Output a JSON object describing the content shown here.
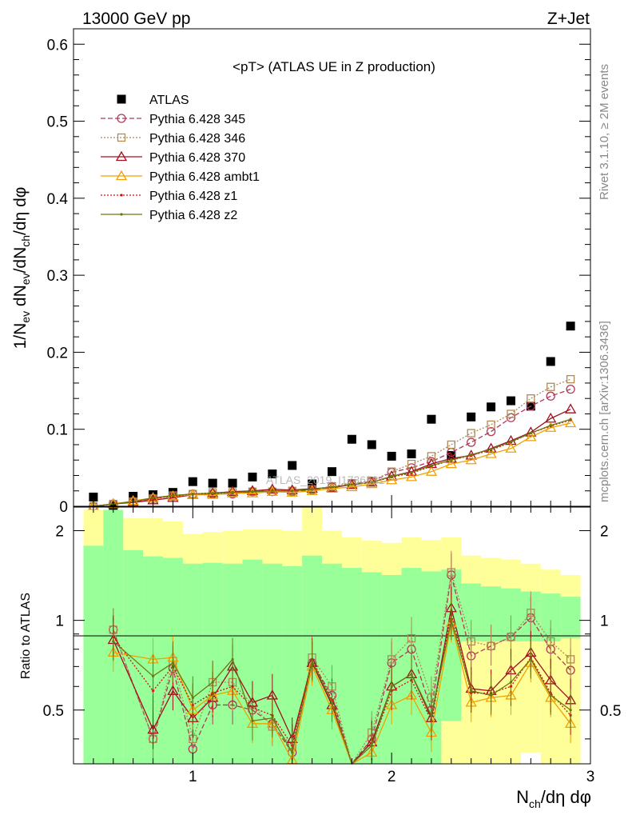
{
  "header": {
    "energy": "13000 GeV pp",
    "process": "Z+Jet"
  },
  "side_labels": {
    "rivet": "Rivet 3.1.10, ≥ 2M events",
    "mcplots": "mcplots.cern.ch [arXiv:1306.3436]"
  },
  "watermark": "ATLAS_2019_I1736531",
  "chart_data": [
    {
      "type": "scatter",
      "panel": "main",
      "title": "<pT> (ATLAS UE in Z production)",
      "ylabel": "1/N_ev dN_ev/dN_ch/dη dφ",
      "xlabel": "N_ch/dη dφ",
      "xlim": [
        0.4,
        3.0
      ],
      "ylim": [
        0,
        0.62
      ],
      "x_ticks": [
        "1",
        "2",
        "3"
      ],
      "y_ticks": [
        "0",
        "0.1",
        "0.2",
        "0.3",
        "0.4",
        "0.5",
        "0.6"
      ],
      "legend_position": "top-left",
      "x": [
        0.5,
        0.6,
        0.7,
        0.8,
        0.9,
        1.0,
        1.1,
        1.2,
        1.3,
        1.4,
        1.5,
        1.6,
        1.7,
        1.8,
        1.9,
        2.0,
        2.1,
        2.2,
        2.3,
        2.4,
        2.5,
        2.6,
        2.7,
        2.8,
        2.9
      ],
      "series": [
        {
          "name": "ATLAS",
          "color": "#000000",
          "marker": "filled-square",
          "line": "none",
          "values": [
            0.012,
            0.0,
            0.013,
            0.015,
            0.018,
            0.032,
            0.03,
            0.03,
            0.038,
            0.042,
            0.053,
            0.029,
            0.045,
            0.087,
            0.08,
            0.065,
            0.068,
            0.113,
            0.066,
            0.116,
            0.129,
            0.137,
            0.13,
            0.188,
            0.234
          ]
        },
        {
          "name": "Pythia 6.428 345",
          "color": "#b03a58",
          "marker": "open-circle",
          "line": "dashed",
          "values": [
            0.0,
            0.003,
            0.006,
            0.01,
            0.013,
            0.016,
            0.016,
            0.016,
            0.019,
            0.019,
            0.019,
            0.021,
            0.025,
            0.029,
            0.032,
            0.044,
            0.05,
            0.058,
            0.07,
            0.083,
            0.097,
            0.115,
            0.13,
            0.143,
            0.152
          ]
        },
        {
          "name": "Pythia 6.428 346",
          "color": "#b08a55",
          "marker": "open-square",
          "line": "dotted",
          "values": [
            0.0,
            0.003,
            0.006,
            0.01,
            0.014,
            0.016,
            0.018,
            0.018,
            0.019,
            0.019,
            0.02,
            0.022,
            0.026,
            0.03,
            0.033,
            0.045,
            0.055,
            0.065,
            0.08,
            0.095,
            0.106,
            0.12,
            0.14,
            0.155,
            0.165
          ]
        },
        {
          "name": "Pythia 6.428 370",
          "color": "#a01020",
          "marker": "open-triangle",
          "line": "solid",
          "values": [
            0.0,
            0.003,
            0.005,
            0.008,
            0.011,
            0.015,
            0.017,
            0.019,
            0.02,
            0.022,
            0.021,
            0.023,
            0.024,
            0.028,
            0.031,
            0.039,
            0.045,
            0.055,
            0.062,
            0.066,
            0.075,
            0.085,
            0.096,
            0.114,
            0.126
          ]
        },
        {
          "name": "Pythia 6.428 ambt1",
          "color": "#f0a000",
          "marker": "open-triangle",
          "line": "solid",
          "values": [
            0.0,
            0.003,
            0.007,
            0.011,
            0.013,
            0.015,
            0.015,
            0.017,
            0.017,
            0.019,
            0.018,
            0.02,
            0.023,
            0.025,
            0.029,
            0.034,
            0.038,
            0.045,
            0.055,
            0.06,
            0.068,
            0.075,
            0.09,
            0.102,
            0.108
          ]
        },
        {
          "name": "Pythia 6.428 z1",
          "color": "#d01010",
          "marker": "dot",
          "line": "dotted",
          "values": [
            0.0,
            0.003,
            0.006,
            0.01,
            0.013,
            0.016,
            0.016,
            0.018,
            0.019,
            0.02,
            0.02,
            0.022,
            0.025,
            0.028,
            0.031,
            0.038,
            0.043,
            0.052,
            0.06,
            0.066,
            0.073,
            0.083,
            0.095,
            0.104,
            0.112
          ]
        },
        {
          "name": "Pythia 6.428 z2",
          "color": "#6a7a10",
          "marker": "dot",
          "line": "solid",
          "values": [
            0.0,
            0.003,
            0.006,
            0.011,
            0.014,
            0.016,
            0.017,
            0.018,
            0.019,
            0.02,
            0.02,
            0.022,
            0.025,
            0.028,
            0.031,
            0.039,
            0.044,
            0.053,
            0.06,
            0.067,
            0.074,
            0.084,
            0.095,
            0.105,
            0.113
          ]
        }
      ]
    },
    {
      "type": "line",
      "panel": "ratio",
      "ylabel": "Ratio to ATLAS",
      "xlabel": "N_ch/dη dφ",
      "xlim": [
        0.4,
        3.0
      ],
      "ylim": [
        0.33,
        2.4
      ],
      "y_ticks": [
        "0.5",
        "1",
        "2"
      ],
      "x": [
        0.5,
        0.6,
        0.7,
        0.8,
        0.9,
        1.0,
        1.1,
        1.2,
        1.3,
        1.4,
        1.5,
        1.6,
        1.7,
        1.8,
        1.9,
        2.0,
        2.1,
        2.2,
        2.3,
        2.4,
        2.5,
        2.6,
        2.7,
        2.8,
        2.9
      ],
      "bands": {
        "bin_width": 0.1,
        "yellow": {
          "lo": [
            0.33,
            0.33,
            0.33,
            0.33,
            0.33,
            0.33,
            0.33,
            0.33,
            0.33,
            0.33,
            0.33,
            0.33,
            0.33,
            0.33,
            0.33,
            0.33,
            0.33,
            0.33,
            0.33,
            0.33,
            0.33,
            0.33,
            0.36,
            0.33,
            0.33
          ],
          "hi": [
            2.35,
            2.35,
            2.2,
            2.2,
            2.15,
            1.95,
            1.98,
            2.0,
            2.02,
            2.02,
            2.0,
            2.4,
            2.0,
            1.9,
            1.85,
            1.82,
            1.9,
            1.86,
            1.9,
            1.65,
            1.62,
            1.6,
            1.55,
            1.48,
            1.42
          ]
        },
        "green": {
          "lo": [
            0.33,
            0.33,
            0.33,
            0.33,
            0.33,
            0.33,
            0.33,
            0.33,
            0.33,
            0.33,
            0.33,
            0.33,
            0.33,
            0.33,
            0.33,
            0.33,
            0.33,
            0.33,
            0.46,
            0.85,
            0.85,
            0.85,
            0.85,
            0.85,
            0.87
          ],
          "hi": [
            1.78,
            2.35,
            1.72,
            1.64,
            1.62,
            1.55,
            1.56,
            1.55,
            1.6,
            1.55,
            1.52,
            1.65,
            1.55,
            1.5,
            1.45,
            1.42,
            1.5,
            1.46,
            1.48,
            1.33,
            1.3,
            1.28,
            1.25,
            1.23,
            1.2
          ]
        }
      },
      "series": [
        {
          "name": "Pythia 6.428 345",
          "color": "#b03a58",
          "marker": "open-circle",
          "line": "dashed",
          "values": [
            null,
            0.93,
            null,
            0.4,
            0.69,
            0.37,
            0.52,
            0.52,
            0.5,
            0.45,
            0.36,
            0.72,
            0.56,
            0.33,
            0.4,
            0.72,
            0.8,
            0.5,
            1.42,
            0.76,
            0.82,
            0.88,
            1.02,
            0.8,
            0.68
          ]
        },
        {
          "name": "Pythia 6.428 346",
          "color": "#b08a55",
          "marker": "open-square",
          "line": "dotted",
          "values": [
            null,
            0.93,
            null,
            0.4,
            0.73,
            0.4,
            0.62,
            0.62,
            0.52,
            0.44,
            0.38,
            0.75,
            0.6,
            0.33,
            0.42,
            0.74,
            0.87,
            0.55,
            1.45,
            0.85,
            0.82,
            0.88,
            1.06,
            0.85,
            0.74
          ]
        },
        {
          "name": "Pythia 6.428 370",
          "color": "#a01020",
          "marker": "open-triangle",
          "line": "solid",
          "values": [
            null,
            0.86,
            null,
            0.43,
            0.58,
            0.47,
            0.55,
            0.7,
            0.53,
            0.56,
            0.4,
            0.72,
            0.52,
            0.33,
            0.39,
            0.6,
            0.66,
            0.47,
            1.1,
            0.59,
            0.58,
            0.68,
            0.78,
            0.63,
            0.54
          ]
        },
        {
          "name": "Pythia 6.428 ambt1",
          "color": "#f0a000",
          "marker": "open-triangle",
          "line": "solid",
          "values": [
            null,
            0.78,
            null,
            0.74,
            0.75,
            0.5,
            0.56,
            0.58,
            0.45,
            0.45,
            0.34,
            0.7,
            0.5,
            0.33,
            0.36,
            0.52,
            0.56,
            0.42,
            0.98,
            0.53,
            0.55,
            0.56,
            0.72,
            0.55,
            0.45
          ]
        },
        {
          "name": "Pythia 6.428 z1",
          "color": "#d01010",
          "marker": "dot",
          "line": "dotted",
          "values": [
            null,
            0.88,
            null,
            0.58,
            0.7,
            0.52,
            0.57,
            0.6,
            0.51,
            0.48,
            0.38,
            0.74,
            0.54,
            0.33,
            0.38,
            0.58,
            0.63,
            0.46,
            1.05,
            0.57,
            0.57,
            0.6,
            0.75,
            0.57,
            0.48
          ]
        },
        {
          "name": "Pythia 6.428 z2",
          "color": "#6a7a10",
          "marker": "dot",
          "line": "solid",
          "values": [
            null,
            0.85,
            null,
            0.65,
            0.72,
            0.55,
            0.62,
            0.74,
            0.46,
            0.47,
            0.36,
            0.73,
            0.53,
            0.33,
            0.38,
            0.6,
            0.66,
            0.48,
            1.0,
            0.58,
            0.56,
            0.62,
            0.74,
            0.56,
            0.5
          ]
        }
      ]
    }
  ]
}
